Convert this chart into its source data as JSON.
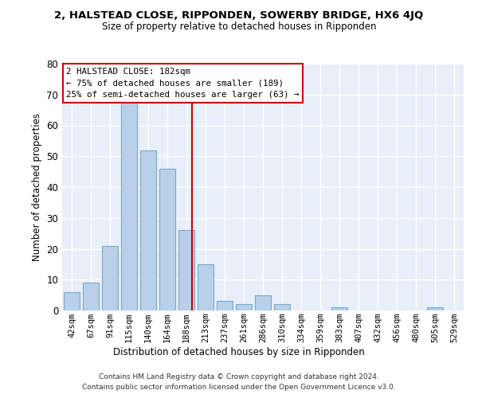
{
  "title_line1": "2, HALSTEAD CLOSE, RIPPONDEN, SOWERBY BRIDGE, HX6 4JQ",
  "title_line2": "Size of property relative to detached houses in Ripponden",
  "xlabel": "Distribution of detached houses by size in Ripponden",
  "ylabel": "Number of detached properties",
  "bar_labels": [
    "42sqm",
    "67sqm",
    "91sqm",
    "115sqm",
    "140sqm",
    "164sqm",
    "188sqm",
    "213sqm",
    "237sqm",
    "261sqm",
    "286sqm",
    "310sqm",
    "334sqm",
    "359sqm",
    "383sqm",
    "407sqm",
    "432sqm",
    "456sqm",
    "480sqm",
    "505sqm",
    "529sqm"
  ],
  "bar_heights": [
    6,
    9,
    21,
    68,
    52,
    46,
    26,
    15,
    3,
    2,
    5,
    2,
    0,
    0,
    1,
    0,
    0,
    0,
    0,
    1,
    0
  ],
  "bar_color": "#b8d0e8",
  "bar_edge_color": "#7aaac8",
  "background_color": "#e8eff8",
  "grid_color": "#ffffff",
  "vline_x": 6.3,
  "vline_color": "#cc0000",
  "annotation_text_line1": "2 HALSTEAD CLOSE: 182sqm",
  "annotation_text_line2": "← 75% of detached houses are smaller (189)",
  "annotation_text_line3": "25% of semi-detached houses are larger (63) →",
  "annotation_box_color": "#cc0000",
  "annotation_bg": "#ffffff",
  "footer_line1": "Contains HM Land Registry data © Crown copyright and database right 2024.",
  "footer_line2": "Contains public sector information licensed under the Open Government Licence v3.0.",
  "ylim": [
    0,
    80
  ],
  "yticks": [
    0,
    10,
    20,
    30,
    40,
    50,
    60,
    70,
    80
  ],
  "figw": 6.0,
  "figh": 5.0,
  "dpi": 100
}
